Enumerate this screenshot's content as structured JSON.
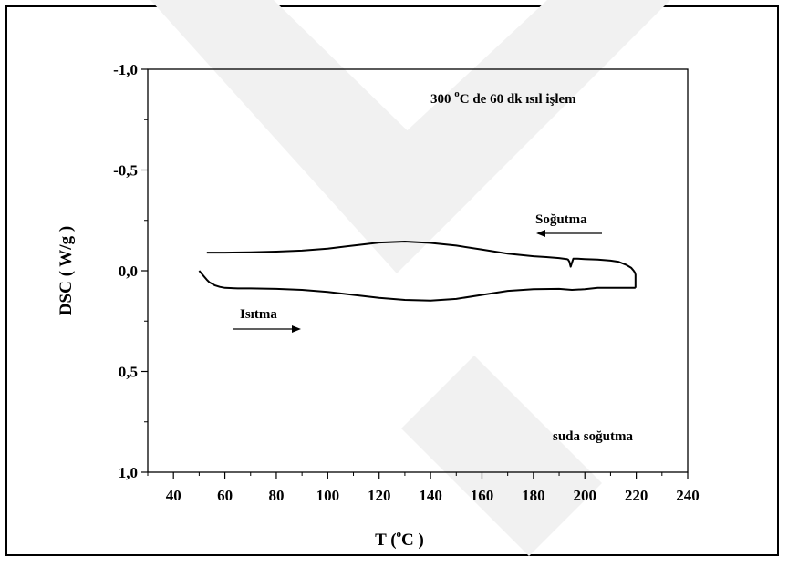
{
  "chart_data": {
    "type": "line",
    "title": "",
    "xlabel": "T ( °C )",
    "xlabel_main": "T (",
    "xlabel_sup": "o",
    "xlabel_end": "C )",
    "ylabel": "DSC ( W/g )",
    "xlim": [
      30,
      240
    ],
    "ylim": [
      -1.0,
      1.0
    ],
    "y_inverted": true,
    "grid": false,
    "x_ticks": [
      40,
      60,
      80,
      100,
      120,
      140,
      160,
      180,
      200,
      220,
      240
    ],
    "x_tick_labels": [
      "40",
      "60",
      "80",
      "100",
      "120",
      "140",
      "160",
      "180",
      "200",
      "220",
      "240"
    ],
    "y_ticks": [
      -1.0,
      -0.5,
      0.0,
      0.5,
      1.0
    ],
    "y_tick_labels": [
      "-1,0",
      "-0,5",
      "0,0",
      "0,5",
      "1,0"
    ],
    "annotations": {
      "treatment_main": "300 ",
      "treatment_sup": "o",
      "treatment_end": "C de 60 dk ısıl işlem",
      "cooling_label": "Soğutma",
      "heating_label": "Isıtma",
      "quench_label": "suda soğutma"
    },
    "series": [
      {
        "color": "#000000",
        "x": [
          50,
          51,
          52,
          53,
          54,
          56,
          58,
          60,
          65,
          70,
          80,
          90,
          100,
          110,
          120,
          130,
          140,
          150,
          160,
          170,
          180,
          190,
          195,
          200,
          205,
          210,
          215,
          219.7
        ],
        "y": [
          0.0,
          0.015,
          0.03,
          0.045,
          0.058,
          0.072,
          0.08,
          0.085,
          0.088,
          0.088,
          0.09,
          0.095,
          0.105,
          0.12,
          0.135,
          0.145,
          0.148,
          0.14,
          0.12,
          0.1,
          0.092,
          0.09,
          0.095,
          0.092,
          0.085,
          0.085,
          0.085,
          0.085
        ]
      },
      {
        "color": "#000000",
        "x": [
          219.7,
          219.7,
          219.5,
          219,
          218,
          216,
          213,
          210,
          205,
          200,
          197,
          195.5,
          195,
          194.5,
          194,
          193.5,
          193,
          190,
          185,
          180,
          170,
          160,
          150,
          140,
          130,
          120,
          110,
          100,
          90,
          80,
          70,
          60,
          53
        ],
        "y": [
          0.085,
          0.02,
          0.01,
          0.0,
          -0.015,
          -0.03,
          -0.045,
          -0.05,
          -0.055,
          -0.058,
          -0.06,
          -0.06,
          -0.04,
          -0.02,
          -0.045,
          -0.055,
          -0.058,
          -0.063,
          -0.068,
          -0.072,
          -0.085,
          -0.105,
          -0.125,
          -0.138,
          -0.145,
          -0.14,
          -0.125,
          -0.11,
          -0.1,
          -0.095,
          -0.092,
          -0.09,
          -0.09
        ]
      }
    ]
  }
}
